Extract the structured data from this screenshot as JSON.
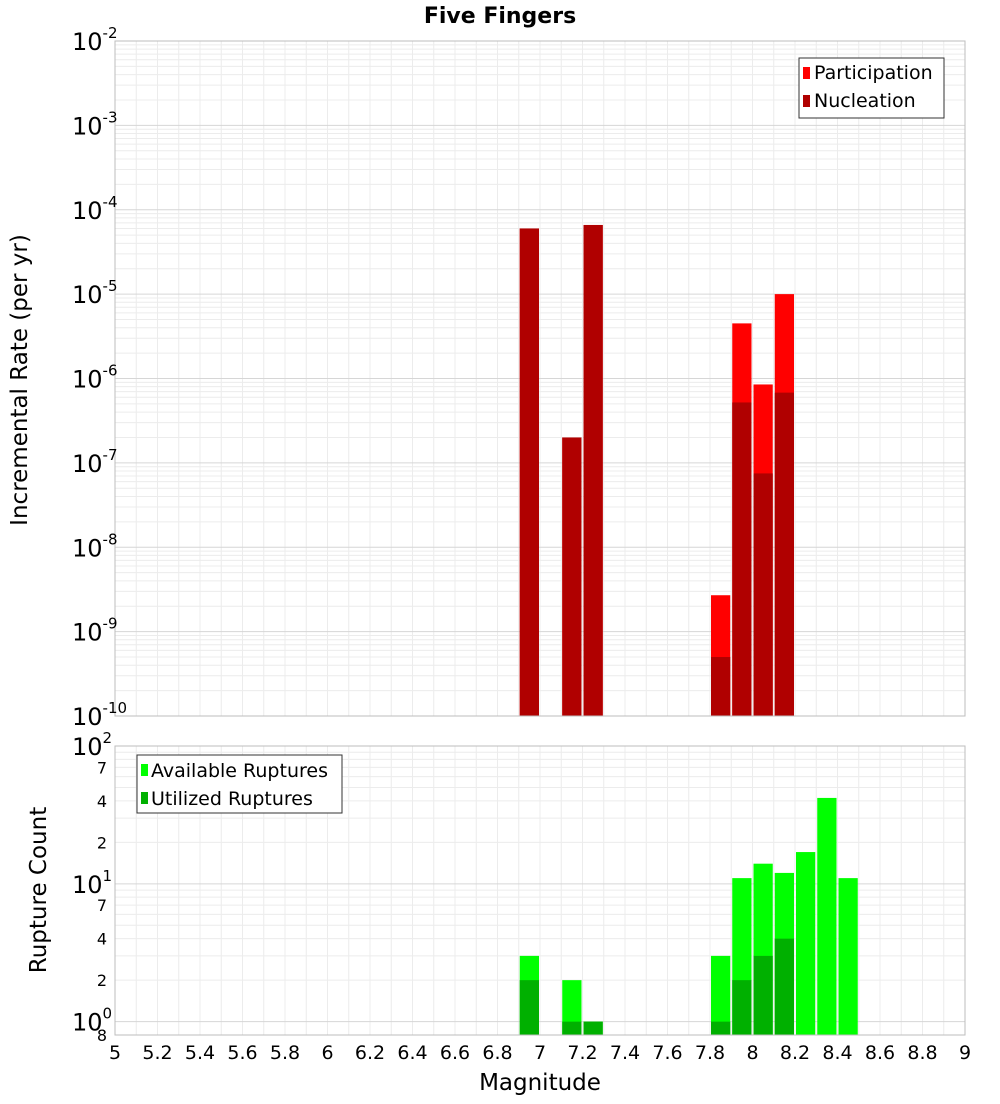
{
  "chart_data": [
    {
      "type": "bar",
      "title": "Five Fingers",
      "ylabel": "Incremental Rate (per yr)",
      "yscale": "log",
      "ylim": [
        1e-10,
        0.01
      ],
      "xlim": [
        5,
        9
      ],
      "y_tick_exponents": [
        "-2",
        "-3",
        "-4",
        "-5",
        "-6",
        "-7",
        "-8",
        "-9",
        "-10"
      ],
      "grid": true,
      "legend_position": "top-right",
      "colors": {
        "participation": "#ff0000",
        "nucleation": "#b00000"
      },
      "legend": [
        "Participation",
        "Nucleation"
      ],
      "x": [
        6.95,
        7.15,
        7.25,
        7.85,
        7.95,
        8.05,
        8.15
      ],
      "series": [
        {
          "name": "Participation",
          "values": [
            6e-05,
            2e-07,
            6.6e-05,
            2.7e-09,
            4.5e-06,
            8.5e-07,
            1e-05
          ]
        },
        {
          "name": "Nucleation",
          "values": [
            6e-05,
            2e-07,
            6.6e-05,
            5e-10,
            5.2e-07,
            7.5e-08,
            6.8e-07
          ]
        }
      ]
    },
    {
      "type": "bar",
      "ylabel": "Rupture Count",
      "xlabel": "Magnitude",
      "yscale": "log",
      "ylim": [
        0.8,
        100
      ],
      "xlim": [
        5,
        9
      ],
      "x_ticks": [
        "5",
        "5.2",
        "5.4",
        "5.6",
        "5.8",
        "6",
        "6.2",
        "6.4",
        "6.6",
        "6.8",
        "7",
        "7.2",
        "7.4",
        "7.6",
        "7.8",
        "8",
        "8.2",
        "8.4",
        "8.6",
        "8.8",
        "9"
      ],
      "y_major_ticks": [
        {
          "value": 1,
          "base": "10",
          "exp": "0"
        },
        {
          "value": 10,
          "base": "10",
          "exp": "1"
        },
        {
          "value": 100,
          "base": "10",
          "exp": "2"
        }
      ],
      "y_minor_ticks": [
        {
          "value": 0.8,
          "label": "8"
        },
        {
          "value": 2,
          "label": "2"
        },
        {
          "value": 4,
          "label": "4"
        },
        {
          "value": 7,
          "label": "7"
        },
        {
          "value": 20,
          "label": "2"
        },
        {
          "value": 40,
          "label": "4"
        },
        {
          "value": 70,
          "label": "7"
        }
      ],
      "grid": true,
      "legend_position": "top-left",
      "colors": {
        "available": "#00ff00",
        "utilized": "#00b000"
      },
      "legend": [
        "Available Ruptures",
        "Utilized Ruptures"
      ],
      "x": [
        6.95,
        7.15,
        7.25,
        7.85,
        7.95,
        8.05,
        8.15,
        8.25,
        8.35,
        8.45
      ],
      "series": [
        {
          "name": "Available Ruptures",
          "values": [
            3,
            2,
            1,
            3,
            11,
            14,
            12,
            17,
            42,
            11
          ]
        },
        {
          "name": "Utilized Ruptures",
          "values": [
            2,
            1,
            1,
            1,
            2,
            3,
            4,
            0,
            0,
            0
          ]
        }
      ]
    }
  ]
}
